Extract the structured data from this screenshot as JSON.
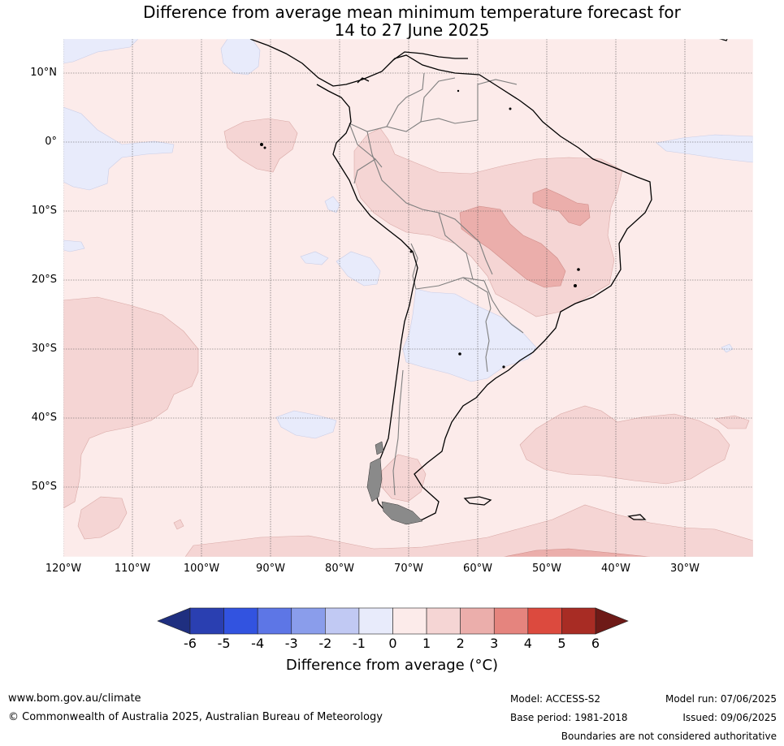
{
  "title_line1": "Difference from average mean minimum temperature forecast for",
  "title_line2": "14 to 27 June 2025",
  "lat_labels": [
    "10°N",
    "0°",
    "10°S",
    "20°S",
    "30°S",
    "40°S",
    "50°S"
  ],
  "lon_labels": [
    "120°W",
    "110°W",
    "100°W",
    "90°W",
    "80°W",
    "70°W",
    "60°W",
    "50°W",
    "40°W",
    "30°W"
  ],
  "colorbar": {
    "ticks": [
      "-6",
      "-5",
      "-4",
      "-3",
      "-2",
      "-1",
      "0",
      "1",
      "2",
      "3",
      "4",
      "5",
      "6"
    ],
    "colors": [
      "#2a3fb1",
      "#3253e0",
      "#5d76e6",
      "#8a9deb",
      "#c1c9f3",
      "#e8ebfb",
      "#fcebea",
      "#f5d5d4",
      "#ebaeab",
      "#e5847e",
      "#dc4a3e",
      "#a82c24"
    ],
    "under_color": "#1f2f80",
    "over_color": "#6e1a17",
    "label": "Difference from average (°C)"
  },
  "footer": {
    "url": "www.bom.gov.au/climate",
    "copyright": "© Commonwealth of Australia 2025, Australian Bureau of Meteorology",
    "model": "Model: ACCESS-S2",
    "base_period": "Base period: 1981-2018",
    "model_run": "Model run: 07/06/2025",
    "issued": "Issued: 09/06/2025",
    "boundaries_note": "Boundaries are not considered authoritative"
  },
  "map_colors": {
    "ocean_base": "#fcebea",
    "warm_1_2": "#f5d5d4",
    "warm_2_3": "#ebaeab",
    "cool_0_neg1": "#e8ebfb",
    "grid": "#555555",
    "coast": "#000000",
    "border": "#808080"
  }
}
